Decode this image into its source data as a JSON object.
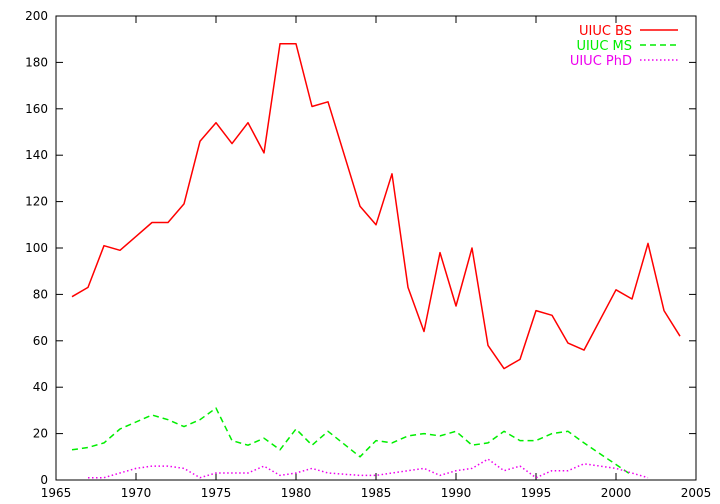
{
  "chart_data": {
    "type": "line",
    "title": "",
    "xlabel": "",
    "ylabel": "",
    "xlim": [
      1965,
      2005
    ],
    "ylim": [
      0,
      200
    ],
    "xticks": [
      1965,
      1970,
      1975,
      1980,
      1985,
      1990,
      1995,
      2000,
      2005
    ],
    "yticks": [
      0,
      20,
      40,
      60,
      80,
      100,
      120,
      140,
      160,
      180,
      200
    ],
    "grid": false,
    "legend_position": "top-right",
    "series": [
      {
        "name": "UIUC BS",
        "color": "#ff0000",
        "dash": "solid",
        "points": [
          [
            1966,
            79
          ],
          [
            1967,
            83
          ],
          [
            1968,
            101
          ],
          [
            1969,
            99
          ],
          [
            1970,
            105
          ],
          [
            1971,
            111
          ],
          [
            1972,
            111
          ],
          [
            1973,
            119
          ],
          [
            1974,
            146
          ],
          [
            1975,
            154
          ],
          [
            1976,
            145
          ],
          [
            1977,
            154
          ],
          [
            1978,
            141
          ],
          [
            1979,
            188
          ],
          [
            1980,
            188
          ],
          [
            1981,
            161
          ],
          [
            1982,
            163
          ],
          [
            1984,
            118
          ],
          [
            1985,
            110
          ],
          [
            1986,
            132
          ],
          [
            1987,
            83
          ],
          [
            1988,
            64
          ],
          [
            1989,
            98
          ],
          [
            1990,
            75
          ],
          [
            1991,
            100
          ],
          [
            1992,
            58
          ],
          [
            1993,
            48
          ],
          [
            1994,
            52
          ],
          [
            1995,
            73
          ],
          [
            1996,
            71
          ],
          [
            1997,
            59
          ],
          [
            1998,
            56
          ],
          [
            2000,
            82
          ],
          [
            2001,
            78
          ],
          [
            2002,
            102
          ],
          [
            2003,
            73
          ],
          [
            2004,
            62
          ]
        ]
      },
      {
        "name": "UIUC MS",
        "color": "#00ee00",
        "dash": "dashed",
        "points": [
          [
            1966,
            13
          ],
          [
            1967,
            14
          ],
          [
            1968,
            16
          ],
          [
            1969,
            22
          ],
          [
            1970,
            25
          ],
          [
            1971,
            28
          ],
          [
            1972,
            26
          ],
          [
            1973,
            23
          ],
          [
            1974,
            26
          ],
          [
            1975,
            31
          ],
          [
            1976,
            17
          ],
          [
            1977,
            15
          ],
          [
            1978,
            18
          ],
          [
            1979,
            13
          ],
          [
            1980,
            22
          ],
          [
            1981,
            15
          ],
          [
            1982,
            21
          ],
          [
            1984,
            10
          ],
          [
            1985,
            17
          ],
          [
            1986,
            16
          ],
          [
            1987,
            19
          ],
          [
            1988,
            20
          ],
          [
            1989,
            19
          ],
          [
            1990,
            21
          ],
          [
            1991,
            15
          ],
          [
            1992,
            16
          ],
          [
            1993,
            21
          ],
          [
            1994,
            17
          ],
          [
            1995,
            17
          ],
          [
            1996,
            20
          ],
          [
            1997,
            21
          ],
          [
            1998,
            16
          ],
          [
            2001,
            2
          ]
        ]
      },
      {
        "name": "UIUC PhD",
        "color": "#ee00ee",
        "dash": "dotted",
        "points": [
          [
            1967,
            1
          ],
          [
            1968,
            1
          ],
          [
            1969,
            3
          ],
          [
            1970,
            5
          ],
          [
            1971,
            6
          ],
          [
            1972,
            6
          ],
          [
            1973,
            5
          ],
          [
            1974,
            1
          ],
          [
            1975,
            3
          ],
          [
            1976,
            3
          ],
          [
            1977,
            3
          ],
          [
            1978,
            6
          ],
          [
            1979,
            2
          ],
          [
            1980,
            3
          ],
          [
            1981,
            5
          ],
          [
            1982,
            3
          ],
          [
            1984,
            2
          ],
          [
            1985,
            2
          ],
          [
            1986,
            3
          ],
          [
            1987,
            4
          ],
          [
            1988,
            5
          ],
          [
            1989,
            2
          ],
          [
            1990,
            4
          ],
          [
            1991,
            5
          ],
          [
            1992,
            9
          ],
          [
            1993,
            4
          ],
          [
            1994,
            6
          ],
          [
            1995,
            1
          ],
          [
            1996,
            4
          ],
          [
            1997,
            4
          ],
          [
            1998,
            7
          ],
          [
            2000,
            5
          ],
          [
            2002,
            1
          ]
        ]
      }
    ]
  }
}
